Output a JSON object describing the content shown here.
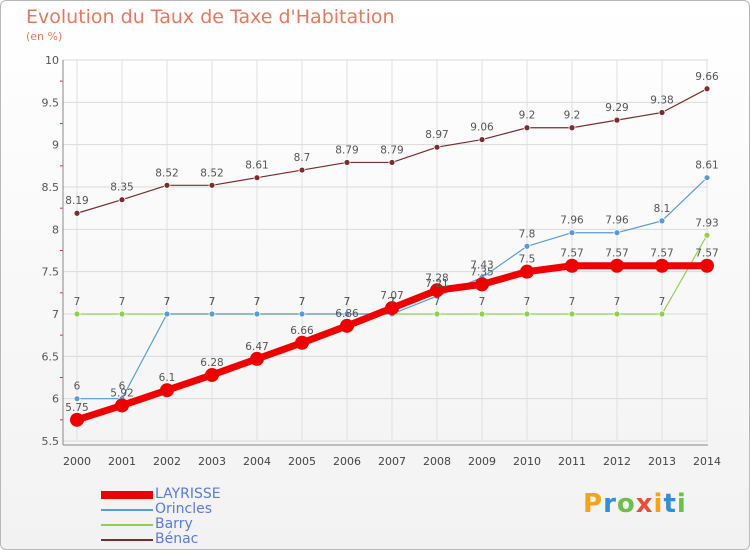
{
  "title": "Evolution du Taux de Taxe d'Habitation",
  "subtitle": "(en %)",
  "logo": {
    "text": "Proxiti",
    "colors": [
      "#f5a31a",
      "#2f8fd8",
      "#6cc04a",
      "#e94e3c",
      "#f5a31a",
      "#2f8fd8",
      "#6cc04a"
    ]
  },
  "chart_data": {
    "type": "line",
    "title": "Evolution du Taux de Taxe d'Habitation",
    "subtitle": "(en %)",
    "xlabel": "",
    "ylabel": "",
    "x": [
      "2000",
      "2001",
      "2002",
      "2003",
      "2004",
      "2005",
      "2006",
      "2007",
      "2008",
      "2009",
      "2010",
      "2011",
      "2012",
      "2013",
      "2014"
    ],
    "yticks": [
      "5.5",
      "6",
      "6.5",
      "7",
      "7.5",
      "8",
      "8.5",
      "9",
      "9.5",
      "10"
    ],
    "ylim": [
      5.5,
      10
    ],
    "grid": true,
    "legend_position": "bottom-left",
    "series": [
      {
        "name": "LAYRISSE",
        "color": "#ee0000",
        "width": 7,
        "marker": 7,
        "labels": "above",
        "values": [
          5.75,
          5.92,
          6.1,
          6.28,
          6.47,
          6.66,
          6.86,
          7.07,
          7.28,
          7.35,
          7.5,
          7.57,
          7.57,
          7.57,
          7.57
        ]
      },
      {
        "name": "Orincles",
        "color": "#5b9bd5",
        "width": 1.2,
        "marker": 3,
        "labels": "above",
        "values": [
          6,
          6,
          7,
          7,
          7,
          7,
          7,
          7,
          7.21,
          7.43,
          7.8,
          7.96,
          7.96,
          8.1,
          8.61
        ]
      },
      {
        "name": "Barry",
        "color": "#8fd14f",
        "width": 1.2,
        "marker": 3,
        "labels": "above",
        "values": [
          7,
          7,
          7,
          7,
          7,
          7,
          7,
          7,
          7,
          7,
          7,
          7,
          7,
          7,
          7.93
        ]
      },
      {
        "name": "Bénac",
        "color": "#7b2c2c",
        "width": 1.2,
        "marker": 3,
        "labels": "above",
        "values": [
          8.19,
          8.35,
          8.52,
          8.52,
          8.61,
          8.7,
          8.79,
          8.79,
          8.97,
          9.06,
          9.2,
          9.2,
          9.29,
          9.38,
          9.66
        ]
      }
    ]
  }
}
